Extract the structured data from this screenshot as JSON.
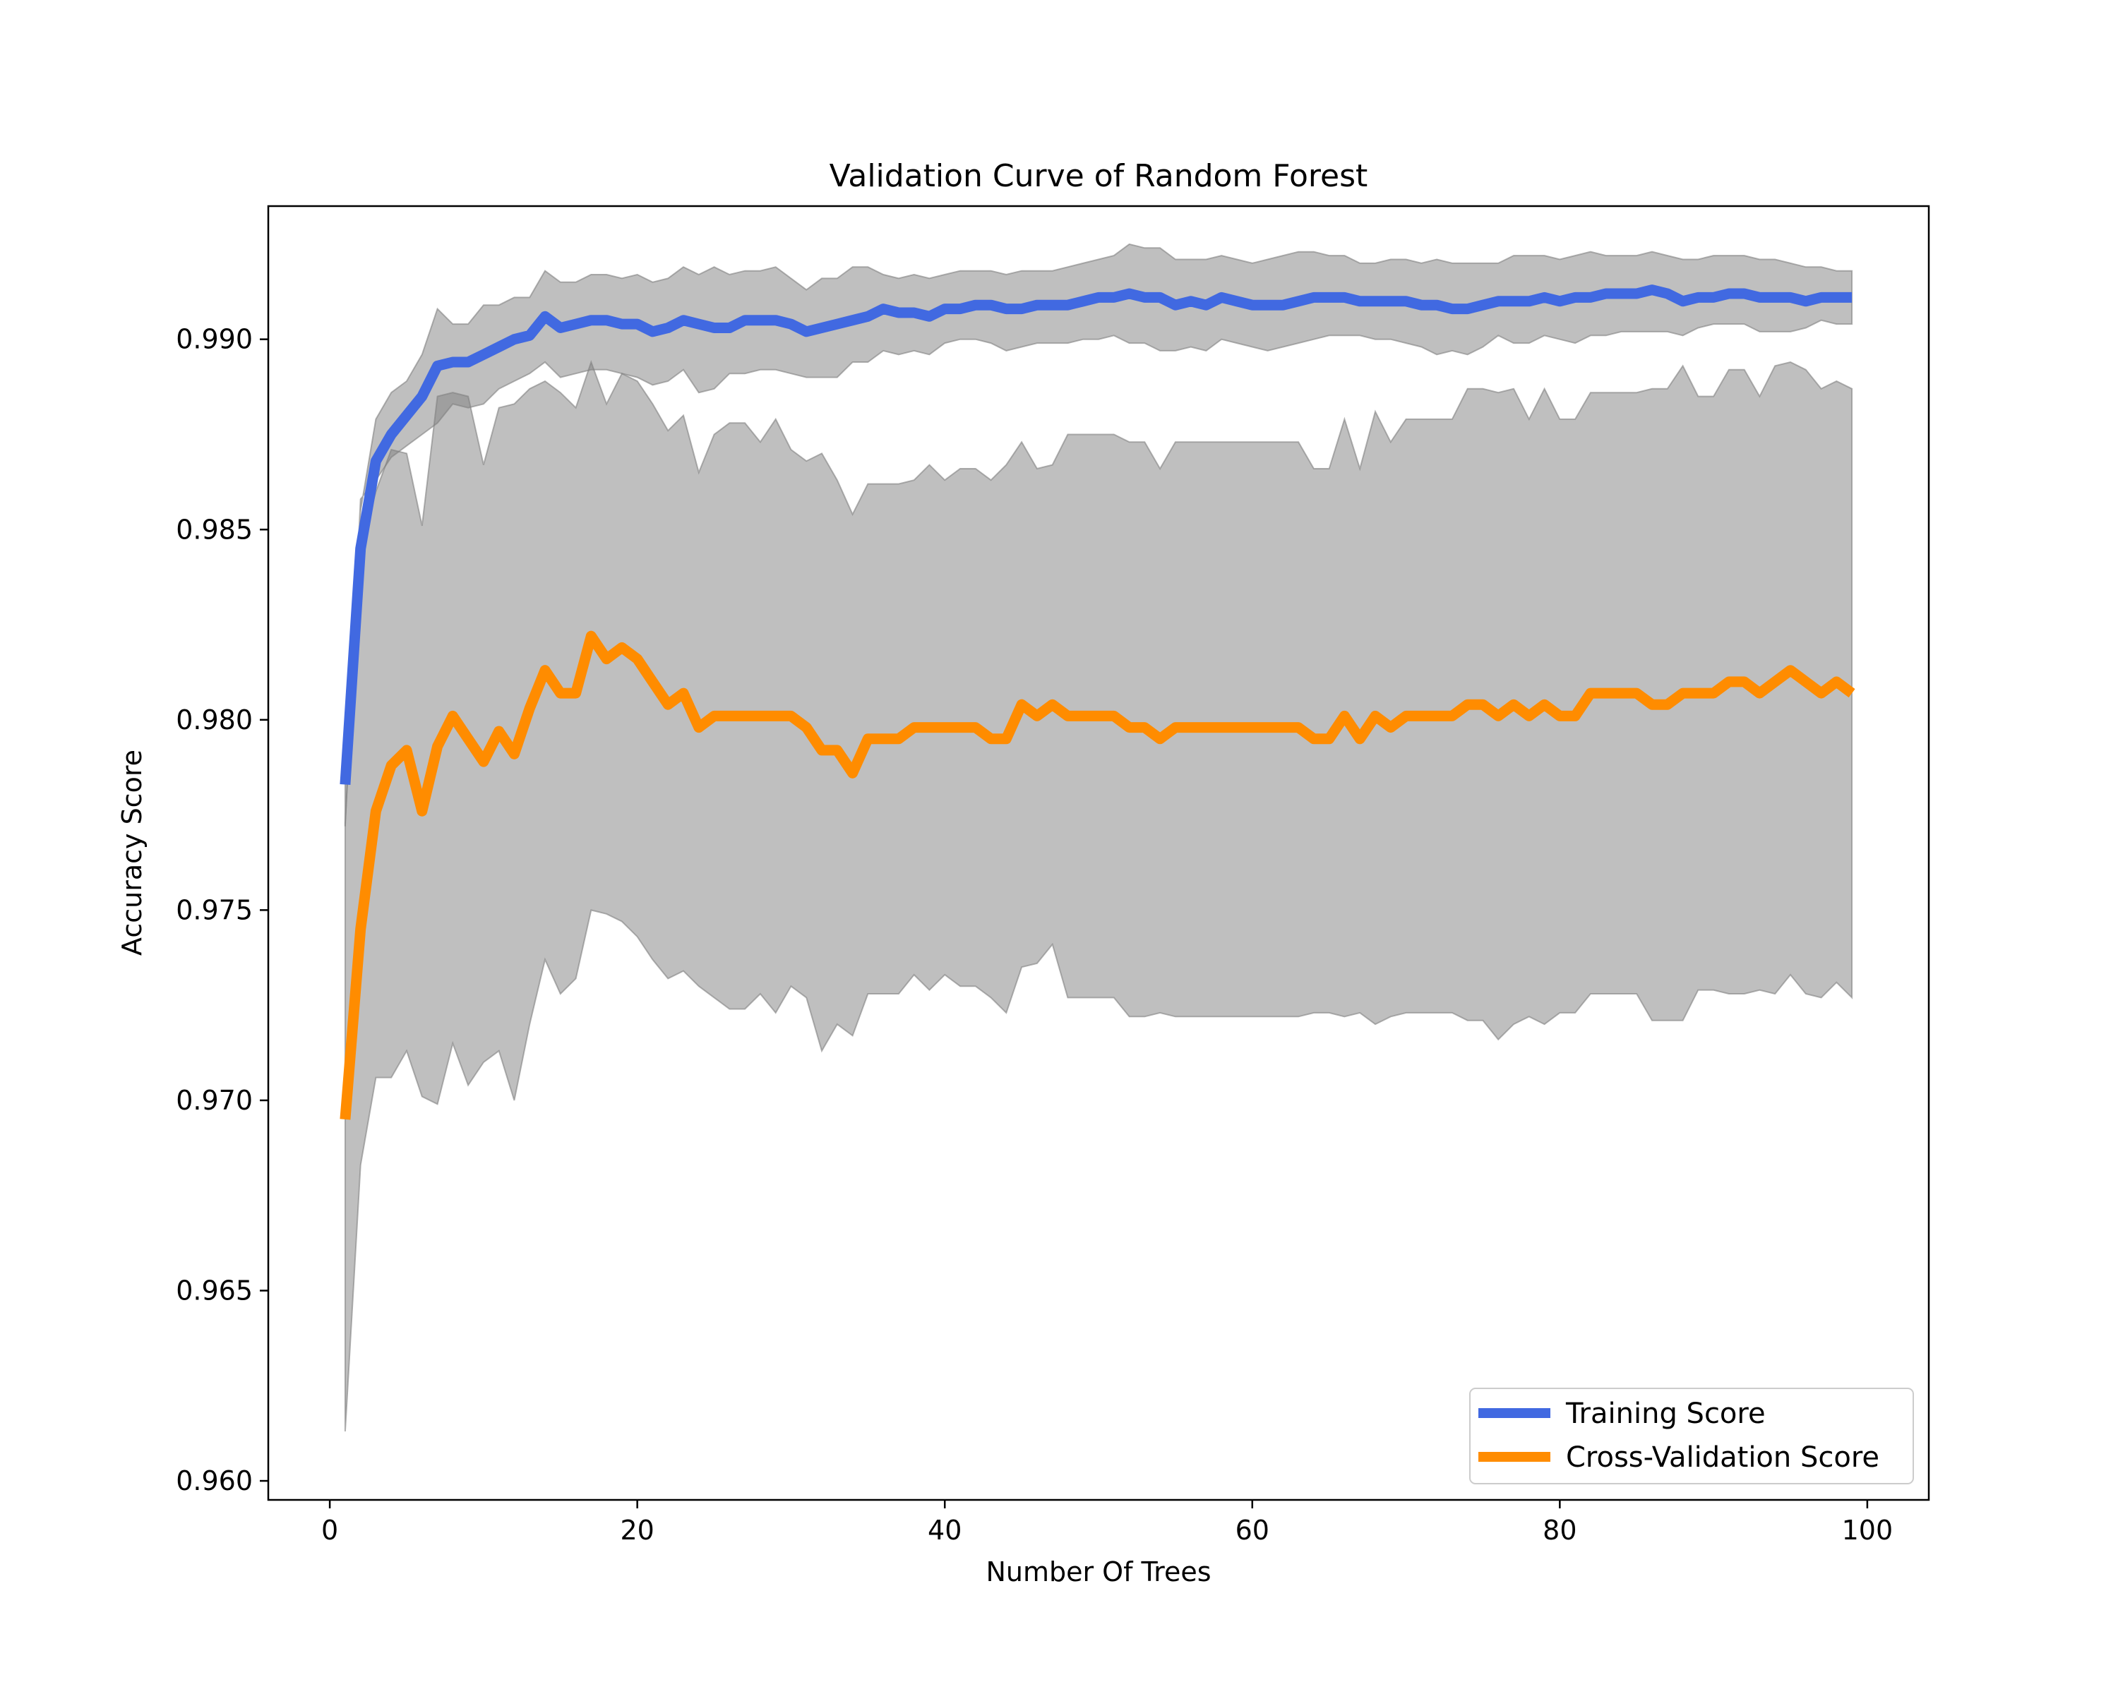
{
  "chart_data": {
    "type": "line",
    "title": "Validation Curve of Random Forest",
    "xlabel": "Number Of Trees",
    "ylabel": "Accuracy Score",
    "xlim": [
      -4,
      104
    ],
    "ylim": [
      0.9595,
      0.9935
    ],
    "xticks": [
      0,
      20,
      40,
      60,
      80,
      100
    ],
    "xtick_labels": [
      "0",
      "20",
      "40",
      "60",
      "80",
      "100"
    ],
    "yticks": [
      0.96,
      0.965,
      0.97,
      0.975,
      0.98,
      0.985,
      0.99
    ],
    "ytick_labels": [
      "0.960",
      "0.965",
      "0.970",
      "0.975",
      "0.980",
      "0.985",
      "0.990"
    ],
    "grid": false,
    "legend_position": "lower-right",
    "colors": {
      "training": "#4169e1",
      "cross_validation": "#ff8c00",
      "band": "#808080"
    },
    "x": [
      1,
      2,
      3,
      4,
      5,
      6,
      7,
      8,
      9,
      10,
      11,
      12,
      13,
      14,
      15,
      16,
      17,
      18,
      19,
      20,
      21,
      22,
      23,
      24,
      25,
      26,
      27,
      28,
      29,
      30,
      31,
      32,
      33,
      34,
      35,
      36,
      37,
      38,
      39,
      40,
      41,
      42,
      43,
      44,
      45,
      46,
      47,
      48,
      49,
      50,
      51,
      52,
      53,
      54,
      55,
      56,
      57,
      58,
      59,
      60,
      61,
      62,
      63,
      64,
      65,
      66,
      67,
      68,
      69,
      70,
      71,
      72,
      73,
      74,
      75,
      76,
      77,
      78,
      79,
      80,
      81,
      82,
      83,
      84,
      85,
      86,
      87,
      88,
      89,
      90,
      91,
      92,
      93,
      94,
      95,
      96,
      97,
      98,
      99
    ],
    "series": [
      {
        "name": "Training Score",
        "key": "training",
        "values": [
          0.9783,
          0.9845,
          0.9868,
          0.9875,
          0.988,
          0.9885,
          0.9893,
          0.9894,
          0.9894,
          0.9896,
          0.9898,
          0.99,
          0.9901,
          0.9906,
          0.9903,
          0.9904,
          0.9905,
          0.9905,
          0.9904,
          0.9904,
          0.9902,
          0.9903,
          0.9905,
          0.9904,
          0.9903,
          0.9903,
          0.9905,
          0.9905,
          0.9905,
          0.9904,
          0.9902,
          0.9903,
          0.9904,
          0.9905,
          0.9906,
          0.9908,
          0.9907,
          0.9907,
          0.9906,
          0.9908,
          0.9908,
          0.9909,
          0.9909,
          0.9908,
          0.9908,
          0.9909,
          0.9909,
          0.9909,
          0.991,
          0.9911,
          0.9911,
          0.9912,
          0.9911,
          0.9911,
          0.9909,
          0.991,
          0.9909,
          0.9911,
          0.991,
          0.9909,
          0.9909,
          0.9909,
          0.991,
          0.9911,
          0.9911,
          0.9911,
          0.991,
          0.991,
          0.991,
          0.991,
          0.9909,
          0.9909,
          0.9908,
          0.9908,
          0.9909,
          0.991,
          0.991,
          0.991,
          0.9911,
          0.991,
          0.9911,
          0.9911,
          0.9912,
          0.9912,
          0.9912,
          0.9913,
          0.9912,
          0.991,
          0.9911,
          0.9911,
          0.9912,
          0.9912,
          0.9911,
          0.9911,
          0.9911,
          0.991,
          0.9911,
          0.9911,
          0.9911
        ],
        "band_lower": [
          0.9772,
          0.9858,
          0.9863,
          0.9869,
          0.9872,
          0.9875,
          0.9878,
          0.9883,
          0.9882,
          0.9883,
          0.9887,
          0.9889,
          0.9891,
          0.9894,
          0.989,
          0.9891,
          0.9892,
          0.9892,
          0.9891,
          0.989,
          0.9888,
          0.9889,
          0.9892,
          0.9886,
          0.9887,
          0.9891,
          0.9891,
          0.9892,
          0.9892,
          0.9891,
          0.989,
          0.989,
          0.989,
          0.9894,
          0.9894,
          0.9897,
          0.9896,
          0.9897,
          0.9896,
          0.9899,
          0.99,
          0.99,
          0.9899,
          0.9897,
          0.9898,
          0.9899,
          0.9899,
          0.9899,
          0.99,
          0.99,
          0.9901,
          0.9899,
          0.9899,
          0.9897,
          0.9897,
          0.9898,
          0.9897,
          0.99,
          0.9899,
          0.9898,
          0.9897,
          0.9898,
          0.9899,
          0.99,
          0.9901,
          0.9901,
          0.9901,
          0.99,
          0.99,
          0.9899,
          0.9898,
          0.9896,
          0.9897,
          0.9896,
          0.9898,
          0.9901,
          0.9899,
          0.9899,
          0.9901,
          0.99,
          0.9899,
          0.9901,
          0.9901,
          0.9902,
          0.9902,
          0.9902,
          0.9902,
          0.9901,
          0.9903,
          0.9904,
          0.9904,
          0.9904,
          0.9902,
          0.9902,
          0.9902,
          0.9903,
          0.9905,
          0.9904,
          0.9904
        ],
        "band_upper": [
          0.9794,
          0.9855,
          0.9879,
          0.9886,
          0.9889,
          0.9896,
          0.9908,
          0.9904,
          0.9904,
          0.9909,
          0.9909,
          0.9911,
          0.9911,
          0.9918,
          0.9915,
          0.9915,
          0.9917,
          0.9917,
          0.9916,
          0.9917,
          0.9915,
          0.9916,
          0.9919,
          0.9917,
          0.9919,
          0.9917,
          0.9918,
          0.9918,
          0.9919,
          0.9916,
          0.9913,
          0.9916,
          0.9916,
          0.9919,
          0.9919,
          0.9917,
          0.9916,
          0.9917,
          0.9916,
          0.9917,
          0.9918,
          0.9918,
          0.9918,
          0.9917,
          0.9918,
          0.9918,
          0.9918,
          0.9919,
          0.992,
          0.9921,
          0.9922,
          0.9925,
          0.9924,
          0.9924,
          0.9921,
          0.9921,
          0.9921,
          0.9922,
          0.9921,
          0.992,
          0.9921,
          0.9922,
          0.9923,
          0.9923,
          0.9922,
          0.9922,
          0.992,
          0.992,
          0.9921,
          0.9921,
          0.992,
          0.9921,
          0.992,
          0.992,
          0.992,
          0.992,
          0.9922,
          0.9922,
          0.9922,
          0.9921,
          0.9922,
          0.9923,
          0.9922,
          0.9922,
          0.9922,
          0.9923,
          0.9922,
          0.9921,
          0.9921,
          0.9922,
          0.9922,
          0.9922,
          0.9921,
          0.9921,
          0.992,
          0.9919,
          0.9919,
          0.9918,
          0.9918
        ]
      },
      {
        "name": "Cross-Validation Score",
        "key": "cross_validation",
        "values": [
          0.9695,
          0.9745,
          0.9776,
          0.9788,
          0.9792,
          0.9776,
          0.9793,
          0.9801,
          0.9795,
          0.9789,
          0.9797,
          0.9791,
          0.9803,
          0.9813,
          0.9807,
          0.9807,
          0.9822,
          0.9816,
          0.9819,
          0.9816,
          0.981,
          0.9804,
          0.9807,
          0.9798,
          0.9801,
          0.9801,
          0.9801,
          0.9801,
          0.9801,
          0.9801,
          0.9798,
          0.9792,
          0.9792,
          0.9786,
          0.9795,
          0.9795,
          0.9795,
          0.9798,
          0.9798,
          0.9798,
          0.9798,
          0.9798,
          0.9795,
          0.9795,
          0.9804,
          0.9801,
          0.9804,
          0.9801,
          0.9801,
          0.9801,
          0.9801,
          0.9798,
          0.9798,
          0.9795,
          0.9798,
          0.9798,
          0.9798,
          0.9798,
          0.9798,
          0.9798,
          0.9798,
          0.9798,
          0.9798,
          0.9795,
          0.9795,
          0.9801,
          0.9795,
          0.9801,
          0.9798,
          0.9801,
          0.9801,
          0.9801,
          0.9801,
          0.9804,
          0.9804,
          0.9801,
          0.9804,
          0.9801,
          0.9804,
          0.9801,
          0.9801,
          0.9807,
          0.9807,
          0.9807,
          0.9807,
          0.9804,
          0.9804,
          0.9807,
          0.9807,
          0.9807,
          0.981,
          0.981,
          0.9807,
          0.981,
          0.9813,
          0.981,
          0.9807,
          0.981,
          0.9807
        ],
        "band_lower": [
          0.9613,
          0.9683,
          0.9706,
          0.9706,
          0.9713,
          0.9701,
          0.9699,
          0.9715,
          0.9704,
          0.971,
          0.9713,
          0.97,
          0.972,
          0.9737,
          0.9728,
          0.9732,
          0.975,
          0.9749,
          0.9747,
          0.9743,
          0.9737,
          0.9732,
          0.9734,
          0.973,
          0.9727,
          0.9724,
          0.9724,
          0.9728,
          0.9723,
          0.973,
          0.9727,
          0.9713,
          0.972,
          0.9717,
          0.9728,
          0.9728,
          0.9728,
          0.9733,
          0.9729,
          0.9733,
          0.973,
          0.973,
          0.9727,
          0.9723,
          0.9735,
          0.9736,
          0.9741,
          0.9727,
          0.9727,
          0.9727,
          0.9727,
          0.9722,
          0.9722,
          0.9723,
          0.9722,
          0.9722,
          0.9722,
          0.9722,
          0.9722,
          0.9722,
          0.9722,
          0.9722,
          0.9722,
          0.9723,
          0.9723,
          0.9722,
          0.9723,
          0.972,
          0.9722,
          0.9723,
          0.9723,
          0.9723,
          0.9723,
          0.9721,
          0.9721,
          0.9716,
          0.972,
          0.9722,
          0.972,
          0.9723,
          0.9723,
          0.9728,
          0.9728,
          0.9728,
          0.9728,
          0.9721,
          0.9721,
          0.9721,
          0.9729,
          0.9729,
          0.9728,
          0.9728,
          0.9729,
          0.9728,
          0.9733,
          0.9728,
          0.9727,
          0.9731,
          0.9727
        ],
        "band_upper": [
          0.9773,
          0.9845,
          0.986,
          0.9871,
          0.987,
          0.9851,
          0.9885,
          0.9886,
          0.9885,
          0.9867,
          0.9882,
          0.9883,
          0.9887,
          0.9889,
          0.9886,
          0.9882,
          0.9894,
          0.9883,
          0.9891,
          0.9889,
          0.9883,
          0.9876,
          0.988,
          0.9865,
          0.9875,
          0.9878,
          0.9878,
          0.9873,
          0.9879,
          0.9871,
          0.9868,
          0.987,
          0.9863,
          0.9854,
          0.9862,
          0.9862,
          0.9862,
          0.9863,
          0.9867,
          0.9863,
          0.9866,
          0.9866,
          0.9863,
          0.9867,
          0.9873,
          0.9866,
          0.9867,
          0.9875,
          0.9875,
          0.9875,
          0.9875,
          0.9873,
          0.9873,
          0.9866,
          0.9873,
          0.9873,
          0.9873,
          0.9873,
          0.9873,
          0.9873,
          0.9873,
          0.9873,
          0.9873,
          0.9866,
          0.9866,
          0.9879,
          0.9866,
          0.9881,
          0.9873,
          0.9879,
          0.9879,
          0.9879,
          0.9879,
          0.9887,
          0.9887,
          0.9886,
          0.9887,
          0.9879,
          0.9887,
          0.9879,
          0.9879,
          0.9886,
          0.9886,
          0.9886,
          0.9886,
          0.9887,
          0.9887,
          0.9893,
          0.9885,
          0.9885,
          0.9892,
          0.9892,
          0.9885,
          0.9893,
          0.9894,
          0.9892,
          0.9887,
          0.9889,
          0.9887
        ]
      }
    ]
  }
}
